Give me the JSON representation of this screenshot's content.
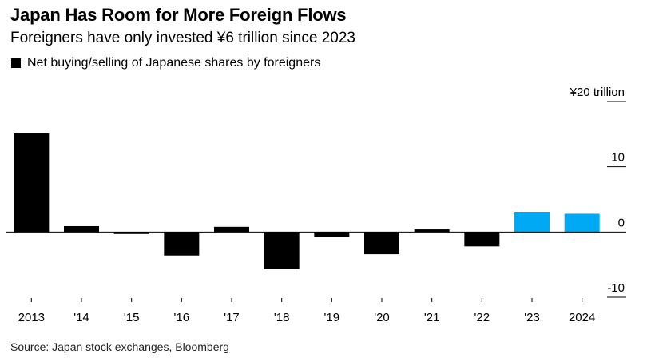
{
  "title": "Japan Has Room for More Foreign Flows",
  "subtitle": "Foreigners have only invested ¥6 trillion since 2023",
  "legend": {
    "label": "Net buying/selling of Japanese shares by foreigners"
  },
  "source": "Source: Japan stock exchanges, Bloomberg",
  "colors": {
    "positive_historic": "#000000",
    "highlight": "#00a9f4",
    "gridline": "#000000"
  },
  "chart_data": {
    "type": "bar",
    "title": "Japan Has Room for More Foreign Flows",
    "subtitle": "Foreigners have only invested ¥6 trillion since 2023",
    "xlabel": "",
    "ylabel": "¥ trillion",
    "unit_label": "¥20 trillion",
    "categories": [
      "2013",
      "'14",
      "'15",
      "'16",
      "'17",
      "'18",
      "'19",
      "'20",
      "'21",
      "'22",
      "'23",
      "2024"
    ],
    "values": [
      15.1,
      0.9,
      -0.3,
      -3.6,
      0.8,
      -5.7,
      -0.7,
      -3.4,
      0.4,
      -2.2,
      3.1,
      2.8
    ],
    "highlight": [
      false,
      false,
      false,
      false,
      false,
      false,
      false,
      false,
      false,
      false,
      true,
      true
    ],
    "ylim": [
      -10,
      20
    ],
    "yticks": [
      20,
      10,
      0,
      -10
    ],
    "ytick_labels": [
      "¥20 trillion",
      "10",
      "0",
      "-10"
    ],
    "legend": [
      "Net buying/selling of Japanese shares by foreigners"
    ],
    "grid": false
  }
}
